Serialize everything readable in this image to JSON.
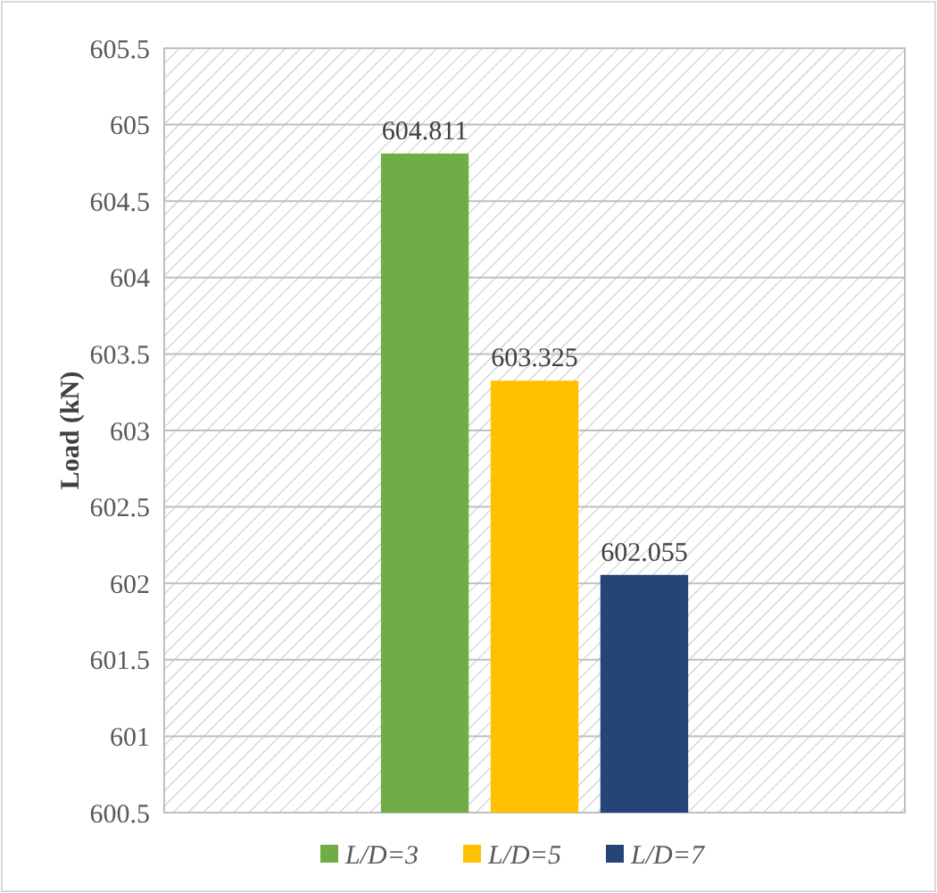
{
  "chart_data": {
    "type": "bar",
    "ylabel": "Load (kN)",
    "categories": [
      null
    ],
    "series": [
      {
        "name": "L/D=3",
        "color": "#70ad47",
        "values": [
          604.811
        ]
      },
      {
        "name": "L/D=5",
        "color": "#ffc000",
        "values": [
          603.325
        ]
      },
      {
        "name": "L/D=7",
        "color": "#264478",
        "values": [
          602.055
        ]
      }
    ],
    "ylim": [
      600.5,
      605.5
    ],
    "yticks": [
      600.5,
      601,
      601.5,
      602,
      602.5,
      603,
      603.5,
      604,
      604.5,
      605,
      605.5
    ],
    "grid": "y",
    "legend": "bottom",
    "data_labels": true
  }
}
